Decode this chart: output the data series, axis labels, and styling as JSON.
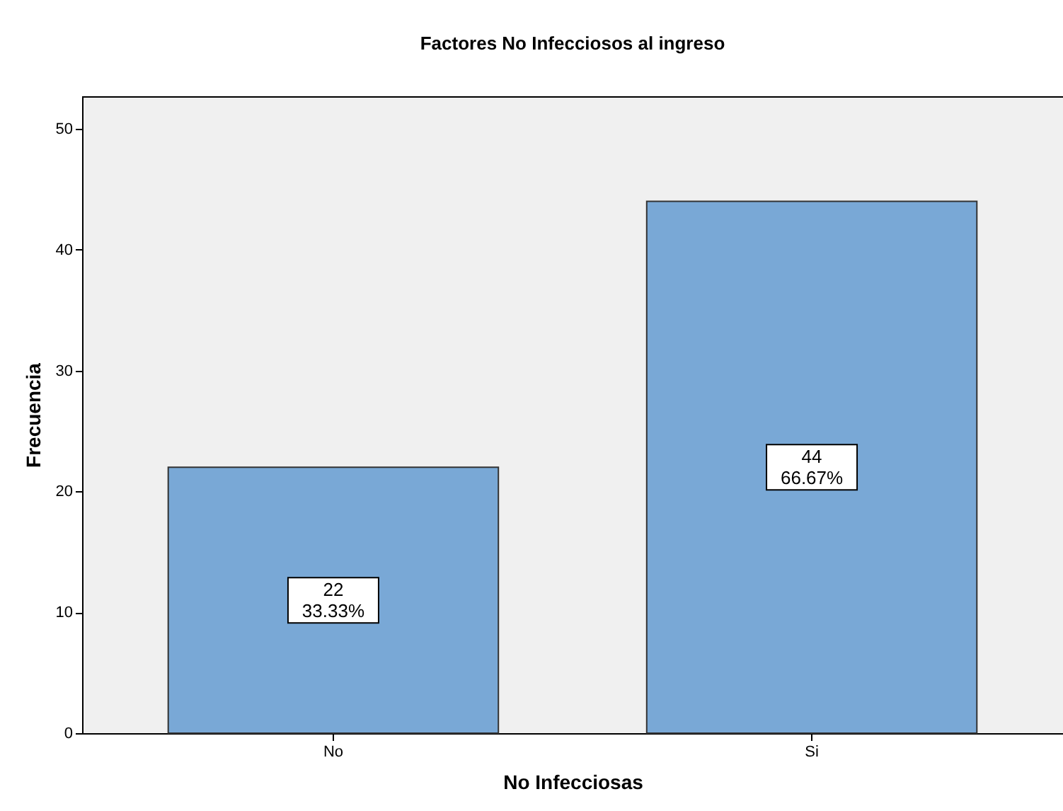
{
  "chart_data": {
    "type": "bar",
    "title": "Factores No Infecciosos al ingreso",
    "xlabel": "No Infecciosas",
    "ylabel": "Frecuencia",
    "categories": [
      "No",
      "Si"
    ],
    "values": [
      22,
      44
    ],
    "value_labels": [
      "22\n33.33%",
      "44\n66.67%"
    ],
    "color": "#79a8d6",
    "ylim": [
      0,
      52.7
    ],
    "yticks": [
      0,
      10,
      20,
      30,
      40,
      50
    ],
    "grid": false
  }
}
